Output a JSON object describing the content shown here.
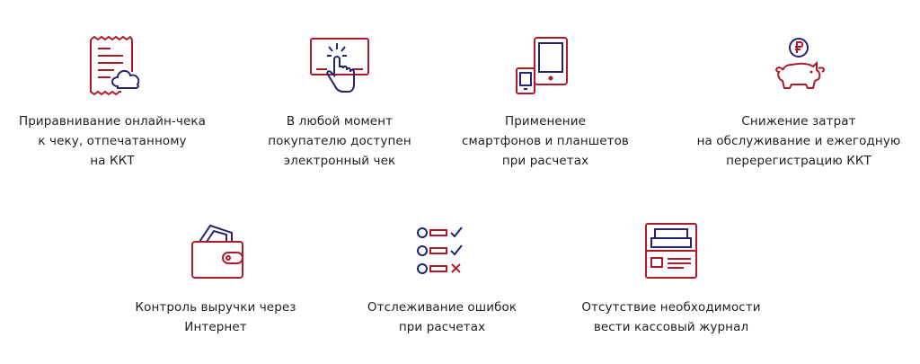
{
  "colors": {
    "accent_red": "#b0192a",
    "accent_blue": "#22246e",
    "text": "#1e1e1e"
  },
  "features": [
    {
      "icon": "receipt-cloud-icon",
      "label": "Приравнивание онлайн-чека\nк чеку, отпечатанному\nна ККТ"
    },
    {
      "icon": "touch-screen-icon",
      "label": "В любой момент\nпокупателю доступен\nэлектронный чек"
    },
    {
      "icon": "tablet-phone-icon",
      "label": "Применение\nсмартфонов и планшетов\nпри расчетах"
    },
    {
      "icon": "piggy-bank-ruble-icon",
      "label": "Снижение затрат\nна обслуживание и ежегодную\nперерегистрацию ККТ"
    },
    {
      "icon": "wallet-icon",
      "label": "Контроль выручки через\nИнтернет"
    },
    {
      "icon": "checklist-icon",
      "label": "Отслеживание ошибок\nпри расчетах"
    },
    {
      "icon": "journal-register-icon",
      "label": "Отсутствие необходимости\nвести кассовый журнал"
    }
  ]
}
